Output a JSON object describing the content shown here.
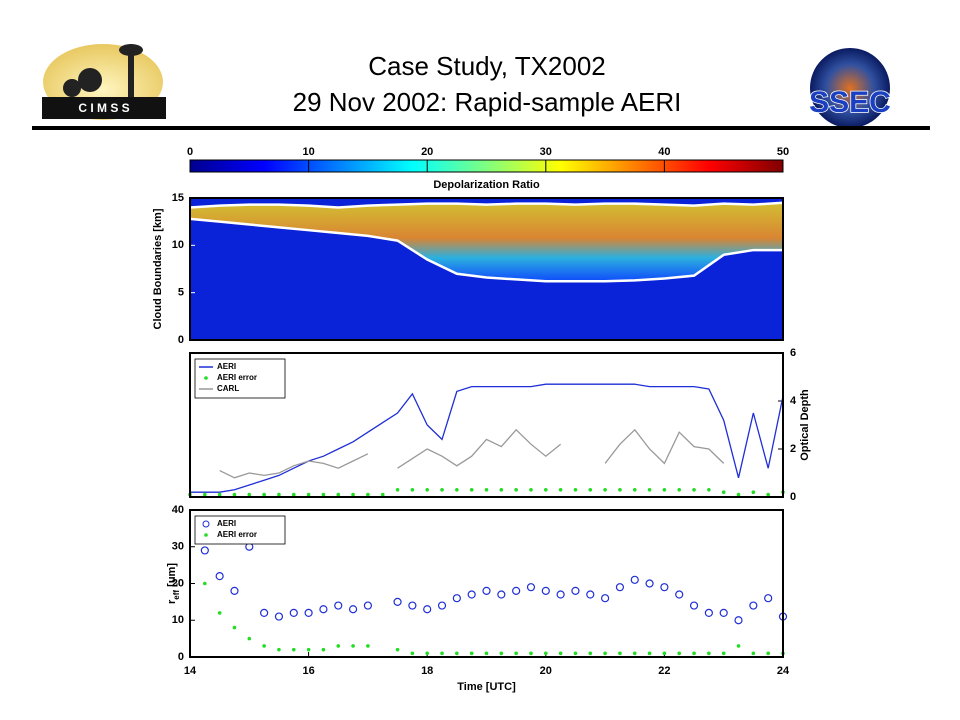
{
  "slide": {
    "title_lines": [
      "Case Study, TX2002",
      "29 Nov 2002: Rapid-sample AERI"
    ],
    "logos": {
      "left": "C I M S S",
      "right": "SSEC"
    }
  },
  "chart_data": [
    {
      "type": "line",
      "ylabel": "Cloud Boundaries [km]",
      "colorbar": {
        "label": "Depolarization Ratio",
        "lim": [
          0,
          50
        ],
        "ticks": [
          0,
          10,
          20,
          30,
          40,
          50
        ]
      },
      "x": [
        14,
        14.5,
        15,
        15.5,
        16,
        16.5,
        17,
        17.5,
        18,
        18.5,
        19,
        19.5,
        20,
        20.5,
        21,
        21.5,
        22,
        22.5,
        23,
        23.5,
        24
      ],
      "series": [
        {
          "color": "#ffffff",
          "marker": "line",
          "values": [
            14.0,
            14.2,
            14.3,
            14.3,
            14.2,
            14.0,
            14.2,
            14.3,
            14.4,
            14.4,
            14.3,
            14.4,
            14.4,
            14.3,
            14.4,
            14.4,
            14.3,
            14.2,
            14.4,
            14.3,
            14.5
          ]
        },
        {
          "color": "#ffffff",
          "marker": "line",
          "values": [
            12.8,
            12.5,
            12.2,
            11.9,
            11.6,
            11.3,
            11.0,
            10.5,
            8.5,
            7.0,
            6.6,
            6.4,
            6.2,
            6.2,
            6.2,
            6.3,
            6.5,
            6.8,
            9.0,
            9.5,
            9.5
          ]
        }
      ],
      "xlim": [
        14,
        24
      ],
      "ylim": [
        0,
        15
      ],
      "yticks": [
        0,
        5,
        10,
        15
      ]
    },
    {
      "type": "line",
      "y2label": "Optical Depth",
      "legend": "upper left",
      "x": [
        14,
        14.25,
        14.5,
        14.75,
        15,
        15.25,
        15.5,
        15.75,
        16,
        16.25,
        16.5,
        16.75,
        17,
        17.25,
        17.5,
        17.75,
        18,
        18.25,
        18.5,
        18.75,
        19,
        19.25,
        19.5,
        19.75,
        20,
        20.25,
        20.5,
        20.75,
        21,
        21.25,
        21.5,
        21.75,
        22,
        22.25,
        22.5,
        22.75,
        23,
        23.25,
        23.5,
        23.75,
        24
      ],
      "series": [
        {
          "name": "AERI",
          "color": "#1f2fd6",
          "marker": "line",
          "axis": "y2",
          "values": [
            0.2,
            0.2,
            0.2,
            0.3,
            0.5,
            0.7,
            0.9,
            1.2,
            1.5,
            1.7,
            2.0,
            2.3,
            2.7,
            3.1,
            3.5,
            4.3,
            3.0,
            2.4,
            4.4,
            4.6,
            4.6,
            4.6,
            4.6,
            4.6,
            4.7,
            4.7,
            4.7,
            4.7,
            4.7,
            4.7,
            4.7,
            4.6,
            4.6,
            4.6,
            4.6,
            4.5,
            3.2,
            0.8,
            3.5,
            1.2,
            4.2
          ]
        },
        {
          "name": "AERI error",
          "color": "#22dd22",
          "marker": "dot",
          "axis": "y2",
          "values": [
            0.1,
            0.1,
            0.1,
            0.1,
            0.1,
            0.1,
            0.1,
            0.1,
            0.1,
            0.1,
            0.1,
            0.1,
            0.1,
            0.1,
            0.3,
            0.3,
            0.3,
            0.3,
            0.3,
            0.3,
            0.3,
            0.3,
            0.3,
            0.3,
            0.3,
            0.3,
            0.3,
            0.3,
            0.3,
            0.3,
            0.3,
            0.3,
            0.3,
            0.3,
            0.3,
            0.3,
            0.2,
            0.1,
            0.2,
            0.1,
            0.2
          ]
        },
        {
          "name": "CARL",
          "color": "#999999",
          "marker": "line",
          "axis": "y2",
          "values": [
            null,
            null,
            1.1,
            0.8,
            1.0,
            0.9,
            1.0,
            1.3,
            1.5,
            1.4,
            1.2,
            1.5,
            1.8,
            null,
            1.2,
            1.6,
            2.0,
            1.7,
            1.3,
            1.7,
            2.4,
            2.1,
            2.8,
            2.2,
            1.7,
            2.2,
            null,
            null,
            1.4,
            2.2,
            2.8,
            2.0,
            1.4,
            2.7,
            2.1,
            2.0,
            1.4,
            null,
            null,
            null,
            null
          ]
        }
      ],
      "xlim": [
        14,
        24
      ],
      "y2lim": [
        0,
        6
      ],
      "y2ticks": [
        0,
        2,
        4,
        6
      ]
    },
    {
      "type": "scatter",
      "ylabel_parts": [
        "r",
        "eff",
        " [um]"
      ],
      "xlabel": "Time [UTC]",
      "legend": "upper left",
      "x": [
        14,
        14.25,
        14.5,
        14.75,
        15,
        15.25,
        15.5,
        15.75,
        16,
        16.25,
        16.5,
        16.75,
        17,
        17.25,
        17.5,
        17.75,
        18,
        18.25,
        18.5,
        18.75,
        19,
        19.25,
        19.5,
        19.75,
        20,
        20.25,
        20.5,
        20.75,
        21,
        21.25,
        21.5,
        21.75,
        22,
        22.25,
        22.5,
        22.75,
        23,
        23.25,
        23.5,
        23.75,
        24
      ],
      "series": [
        {
          "name": "AERI",
          "color": "#1f2fd6",
          "marker": "circle",
          "values": [
            null,
            29,
            22,
            18,
            30,
            12,
            11,
            12,
            12,
            13,
            14,
            13,
            14,
            null,
            15,
            14,
            13,
            14,
            16,
            17,
            18,
            17,
            18,
            19,
            18,
            17,
            18,
            17,
            16,
            19,
            21,
            20,
            19,
            17,
            14,
            12,
            12,
            10,
            14,
            16,
            11
          ]
        },
        {
          "name": "AERI error",
          "color": "#22dd22",
          "marker": "dot",
          "values": [
            null,
            20,
            12,
            8,
            5,
            3,
            2,
            2,
            2,
            2,
            3,
            3,
            3,
            null,
            2,
            1,
            1,
            1,
            1,
            1,
            1,
            1,
            1,
            1,
            1,
            1,
            1,
            1,
            1,
            1,
            1,
            1,
            1,
            1,
            1,
            1,
            1,
            3,
            1,
            1,
            1
          ]
        }
      ],
      "xlim": [
        14,
        24
      ],
      "xticks": [
        14,
        16,
        18,
        20,
        22,
        24
      ],
      "ylim": [
        0,
        40
      ],
      "yticks": [
        0,
        10,
        20,
        30,
        40
      ]
    }
  ]
}
